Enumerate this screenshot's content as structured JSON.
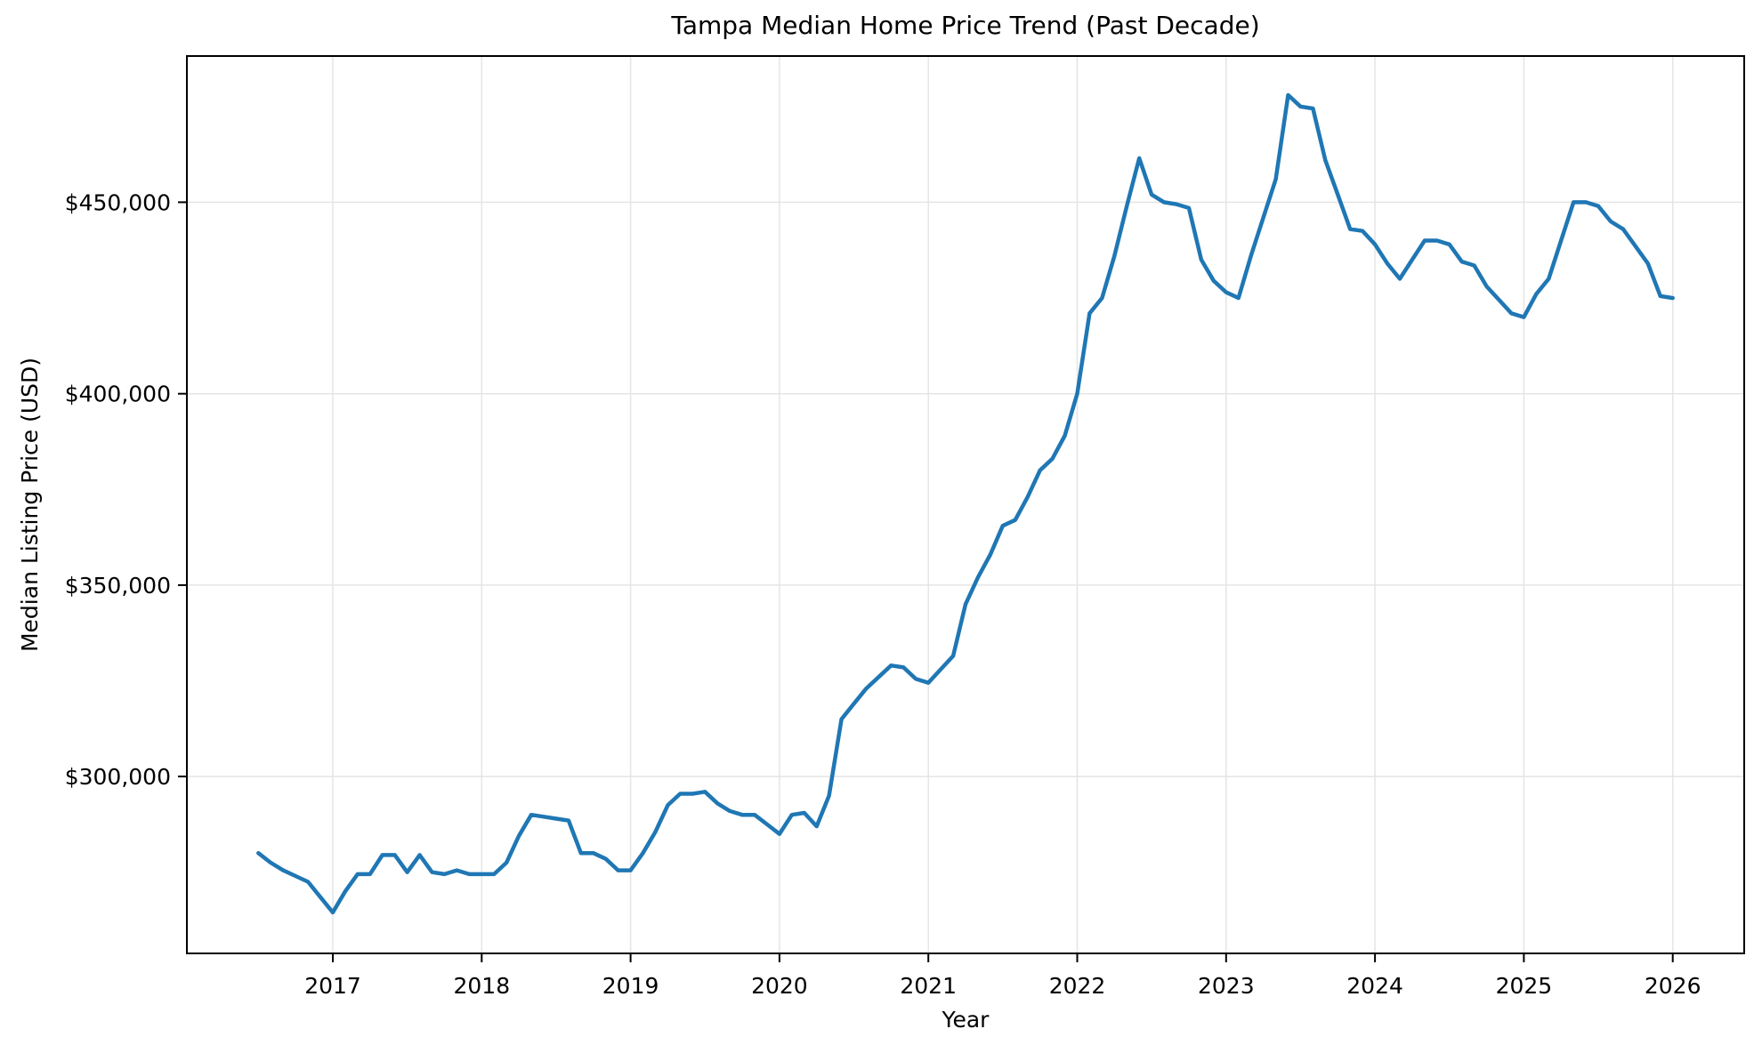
{
  "chart_data": {
    "type": "line",
    "title": "Tampa Median Home Price Trend (Past Decade)",
    "xlabel": "Year",
    "ylabel": "Median Listing Price (USD)",
    "legend": null,
    "grid": true,
    "line_color": "#1f77b4",
    "grid_color": "#e5e5e5",
    "background_color": "#ffffff",
    "xlim_years": [
      2016.02,
      2026.48
    ],
    "ylim": [
      253800,
      488200
    ],
    "x_ticks": [
      {
        "v": 2017,
        "label": "2017"
      },
      {
        "v": 2018,
        "label": "2018"
      },
      {
        "v": 2019,
        "label": "2019"
      },
      {
        "v": 2020,
        "label": "2020"
      },
      {
        "v": 2021,
        "label": "2021"
      },
      {
        "v": 2022,
        "label": "2022"
      },
      {
        "v": 2023,
        "label": "2023"
      },
      {
        "v": 2024,
        "label": "2024"
      },
      {
        "v": 2025,
        "label": "2025"
      },
      {
        "v": 2026,
        "label": "2026"
      }
    ],
    "y_ticks": [
      {
        "v": 300000,
        "label": "$300,000"
      },
      {
        "v": 350000,
        "label": "$350,000"
      },
      {
        "v": 400000,
        "label": "$400,000"
      },
      {
        "v": 450000,
        "label": "$450,000"
      }
    ],
    "series_name": "Median Listing Price",
    "x_dates": [
      "2016-07",
      "2016-08",
      "2016-09",
      "2016-10",
      "2016-11",
      "2016-12",
      "2017-01",
      "2017-02",
      "2017-03",
      "2017-04",
      "2017-05",
      "2017-06",
      "2017-07",
      "2017-08",
      "2017-09",
      "2017-10",
      "2017-11",
      "2017-12",
      "2018-01",
      "2018-02",
      "2018-03",
      "2018-04",
      "2018-05",
      "2018-06",
      "2018-07",
      "2018-08",
      "2018-09",
      "2018-10",
      "2018-11",
      "2018-12",
      "2019-01",
      "2019-02",
      "2019-03",
      "2019-04",
      "2019-05",
      "2019-06",
      "2019-07",
      "2019-08",
      "2019-09",
      "2019-10",
      "2019-11",
      "2019-12",
      "2020-01",
      "2020-02",
      "2020-03",
      "2020-04",
      "2020-05",
      "2020-06",
      "2020-07",
      "2020-08",
      "2020-09",
      "2020-10",
      "2020-11",
      "2020-12",
      "2021-01",
      "2021-02",
      "2021-03",
      "2021-04",
      "2021-05",
      "2021-06",
      "2021-07",
      "2021-08",
      "2021-09",
      "2021-10",
      "2021-11",
      "2021-12",
      "2022-01",
      "2022-02",
      "2022-03",
      "2022-04",
      "2022-05",
      "2022-06",
      "2022-07",
      "2022-08",
      "2022-09",
      "2022-10",
      "2022-11",
      "2022-12",
      "2023-01",
      "2023-02",
      "2023-03",
      "2023-04",
      "2023-05",
      "2023-06",
      "2023-07",
      "2023-08",
      "2023-09",
      "2023-10",
      "2023-11",
      "2023-12",
      "2024-01",
      "2024-02",
      "2024-03",
      "2024-04",
      "2024-05",
      "2024-06",
      "2024-07",
      "2024-08",
      "2024-09",
      "2024-10",
      "2024-11",
      "2024-12",
      "2025-01",
      "2025-02",
      "2025-03",
      "2025-04",
      "2025-05",
      "2025-06",
      "2025-07",
      "2025-08",
      "2025-09",
      "2025-10",
      "2025-11",
      "2025-12",
      "2026-01"
    ],
    "values": [
      280000,
      277500,
      275500,
      274000,
      272500,
      268500,
      264500,
      270000,
      274500,
      274500,
      279500,
      279500,
      275000,
      279500,
      275000,
      274500,
      275500,
      274500,
      274500,
      274500,
      277500,
      284500,
      290000,
      289500,
      289000,
      288500,
      280000,
      280000,
      278500,
      275500,
      275500,
      280000,
      285500,
      292500,
      295500,
      295500,
      296000,
      293000,
      291000,
      290000,
      290000,
      287500,
      285000,
      290000,
      290500,
      287000,
      295000,
      315000,
      319000,
      323000,
      326000,
      329000,
      328500,
      325500,
      324500,
      328000,
      331500,
      345000,
      352000,
      358000,
      365500,
      367000,
      373000,
      380000,
      383000,
      389000,
      400000,
      421000,
      425000,
      436000,
      449000,
      461500,
      452000,
      450000,
      449500,
      448500,
      435000,
      429500,
      426500,
      425000,
      436000,
      446000,
      456000,
      478000,
      475000,
      474500,
      461000,
      452000,
      443000,
      442500,
      439000,
      434000,
      430000,
      435000,
      440000,
      440000,
      439000,
      434500,
      433500,
      428000,
      424500,
      421000,
      420000,
      426000,
      430000,
      440000,
      450000,
      450000,
      449000,
      445000,
      443000,
      438500,
      434000,
      425500,
      425000
    ]
  }
}
